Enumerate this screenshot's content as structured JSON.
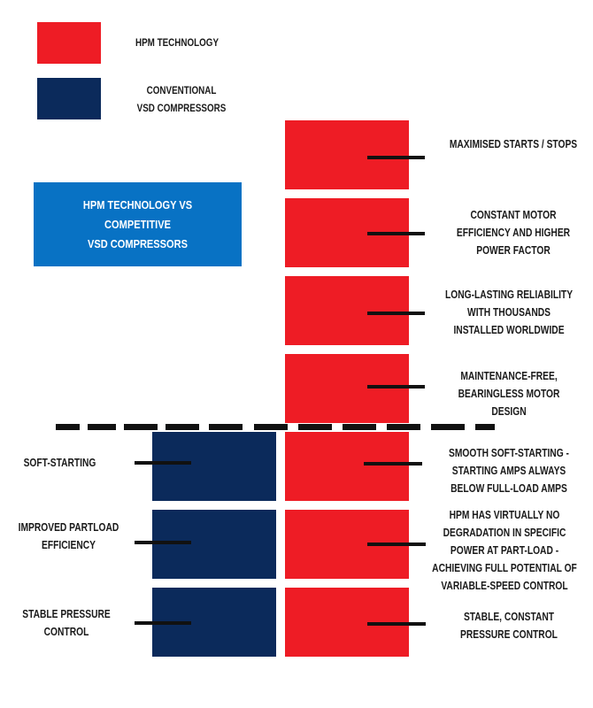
{
  "legend": [
    {
      "label": "HPM TECHNOLOGY",
      "color": "#ee1c25"
    },
    {
      "label": "CONVENTIONAL\nVSD COMPRESSORS",
      "color": "#0b2a5b"
    }
  ],
  "title": {
    "text": "HPM TECHNOLOGY VS COMPETITIVE\nVSD COMPRESSORS",
    "color": "#0872c4"
  },
  "hpm_only_features": [
    "MAXIMISED STARTS / STOPS",
    "CONSTANT MOTOR\nEFFICIENCY AND HIGHER\nPOWER FACTOR",
    "LONG-LASTING RELIABILITY\nWITH THOUSANDS\nINSTALLED WORLDWIDE",
    "MAINTENANCE-FREE,\nBEARINGLESS MOTOR DESIGN"
  ],
  "shared_features": [
    {
      "conventional": "SOFT-STARTING",
      "hpm": "SMOOTH SOFT-STARTING -\nSTARTING AMPS ALWAYS\nBELOW FULL-LOAD AMPS"
    },
    {
      "conventional": "IMPROVED PARTLOAD\nEFFICIENCY",
      "hpm": "HPM HAS VIRTUALLY NO\nDEGRADATION IN SPECIFIC\nPOWER AT PART-LOAD -\nACHIEVING FULL POTENTIAL OF\nVARIABLE-SPEED CONTROL"
    },
    {
      "conventional": "STABLE PRESSURE\nCONTROL",
      "hpm": "STABLE, CONSTANT\nPRESSURE CONTROL"
    }
  ]
}
